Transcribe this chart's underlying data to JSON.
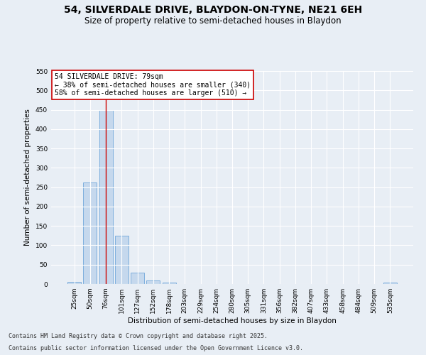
{
  "title1": "54, SILVERDALE DRIVE, BLAYDON-ON-TYNE, NE21 6EH",
  "title2": "Size of property relative to semi-detached houses in Blaydon",
  "xlabel": "Distribution of semi-detached houses by size in Blaydon",
  "ylabel": "Number of semi-detached properties",
  "categories": [
    "25sqm",
    "50sqm",
    "76sqm",
    "101sqm",
    "127sqm",
    "152sqm",
    "178sqm",
    "203sqm",
    "229sqm",
    "254sqm",
    "280sqm",
    "305sqm",
    "331sqm",
    "356sqm",
    "382sqm",
    "407sqm",
    "433sqm",
    "458sqm",
    "484sqm",
    "509sqm",
    "535sqm"
  ],
  "values": [
    5,
    262,
    450,
    125,
    30,
    10,
    3,
    0,
    0,
    0,
    0,
    0,
    0,
    0,
    0,
    0,
    0,
    0,
    0,
    0,
    3
  ],
  "bar_color": "#c5d8ed",
  "bar_edge_color": "#5b9bd5",
  "vline_x_index": 2,
  "vline_color": "#cc0000",
  "annotation_text": "54 SILVERDALE DRIVE: 79sqm\n← 38% of semi-detached houses are smaller (340)\n58% of semi-detached houses are larger (510) →",
  "annotation_box_color": "#ffffff",
  "annotation_box_edge": "#cc0000",
  "ylim": [
    0,
    550
  ],
  "yticks": [
    0,
    50,
    100,
    150,
    200,
    250,
    300,
    350,
    400,
    450,
    500,
    550
  ],
  "footer1": "Contains HM Land Registry data © Crown copyright and database right 2025.",
  "footer2": "Contains public sector information licensed under the Open Government Licence v3.0.",
  "bg_color": "#e8eef5",
  "plot_bg_color": "#e8eef5",
  "title1_fontsize": 10,
  "title2_fontsize": 8.5,
  "tick_fontsize": 6.5,
  "label_fontsize": 7.5,
  "footer_fontsize": 6,
  "annot_fontsize": 7
}
